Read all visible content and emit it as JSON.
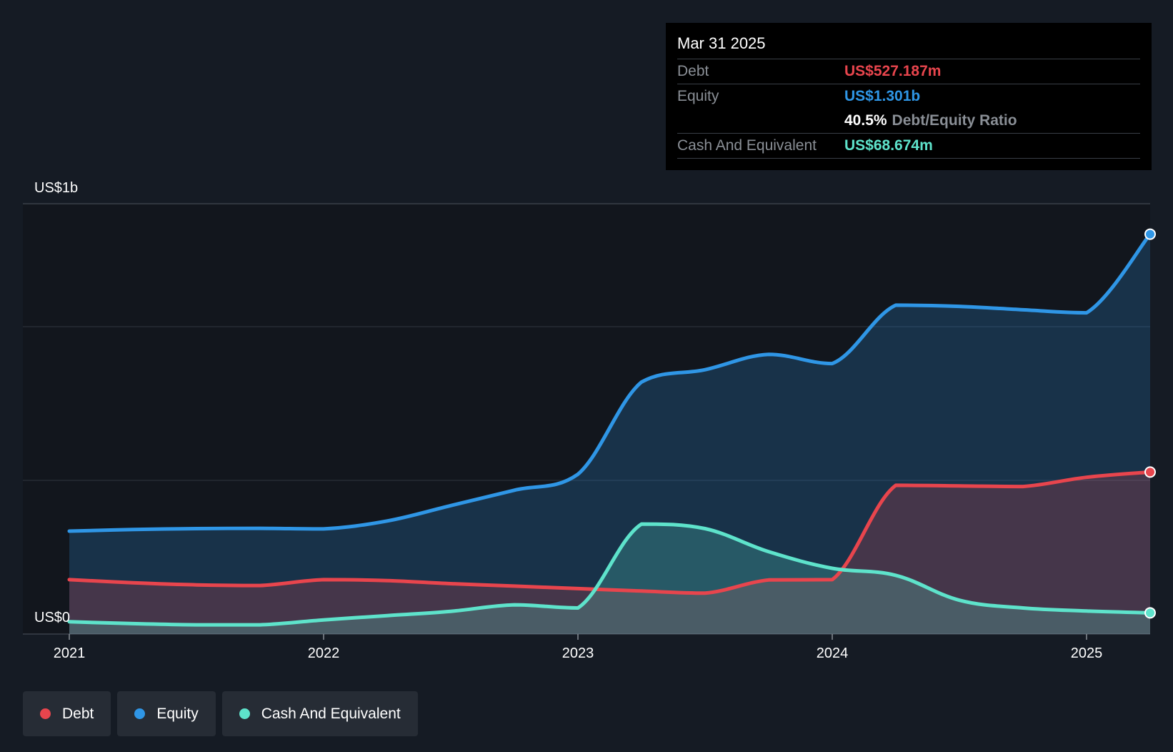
{
  "chart_data": {
    "type": "area",
    "y_axis_labels": [
      "US$1b",
      "US$0"
    ],
    "x_ticks": [
      "2021",
      "2022",
      "2023",
      "2024",
      "2025"
    ],
    "ylim": [
      0,
      1.4
    ],
    "xlim": [
      2021.0,
      2025.25
    ],
    "grid": true,
    "legend_position": "bottom-left",
    "series": [
      {
        "name": "Equity",
        "color": "#2f96e6",
        "x": [
          2021.0,
          2021.25,
          2021.5,
          2021.75,
          2022.0,
          2022.25,
          2022.5,
          2022.75,
          2023.0,
          2023.25,
          2023.5,
          2023.75,
          2024.0,
          2024.25,
          2024.5,
          2024.75,
          2025.0,
          2025.25
        ],
        "y": [
          0.335,
          0.34,
          0.343,
          0.344,
          0.342,
          0.368,
          0.418,
          0.468,
          0.52,
          0.82,
          0.86,
          0.91,
          0.88,
          1.07,
          1.066,
          1.055,
          1.045,
          1.301
        ]
      },
      {
        "name": "Debt",
        "color": "#e8454d",
        "x": [
          2021.0,
          2021.25,
          2021.5,
          2021.75,
          2022.0,
          2022.25,
          2022.5,
          2022.75,
          2023.0,
          2023.25,
          2023.5,
          2023.75,
          2024.0,
          2024.25,
          2024.5,
          2024.75,
          2025.0,
          2025.25
        ],
        "y": [
          0.177,
          0.167,
          0.16,
          0.158,
          0.177,
          0.174,
          0.164,
          0.156,
          0.148,
          0.14,
          0.133,
          0.176,
          0.177,
          0.484,
          0.482,
          0.48,
          0.51,
          0.527
        ]
      },
      {
        "name": "Cash And Equivalent",
        "color": "#5ee3cb",
        "x": [
          2021.0,
          2021.25,
          2021.5,
          2021.75,
          2022.0,
          2022.25,
          2022.5,
          2022.75,
          2023.0,
          2023.25,
          2023.5,
          2023.75,
          2024.0,
          2024.25,
          2024.5,
          2024.75,
          2025.0,
          2025.25
        ],
        "y": [
          0.04,
          0.034,
          0.03,
          0.03,
          0.046,
          0.06,
          0.074,
          0.095,
          0.085,
          0.358,
          0.343,
          0.268,
          0.214,
          0.191,
          0.11,
          0.085,
          0.075,
          0.069
        ]
      }
    ]
  },
  "tooltip": {
    "date": "Mar 31 2025",
    "debt_label": "Debt",
    "debt_value": "US$527.187m",
    "equity_label": "Equity",
    "equity_value": "US$1.301b",
    "ratio_value": "40.5%",
    "ratio_label": "Debt/Equity Ratio",
    "cash_label": "Cash And Equivalent",
    "cash_value": "US$68.674m"
  },
  "legend": {
    "items": [
      {
        "label": "Debt",
        "color": "#e8454d"
      },
      {
        "label": "Equity",
        "color": "#2f96e6"
      },
      {
        "label": "Cash And Equivalent",
        "color": "#5ee3cb"
      }
    ]
  },
  "colors": {
    "background": "#151b24",
    "plot_background": "#12161d"
  }
}
